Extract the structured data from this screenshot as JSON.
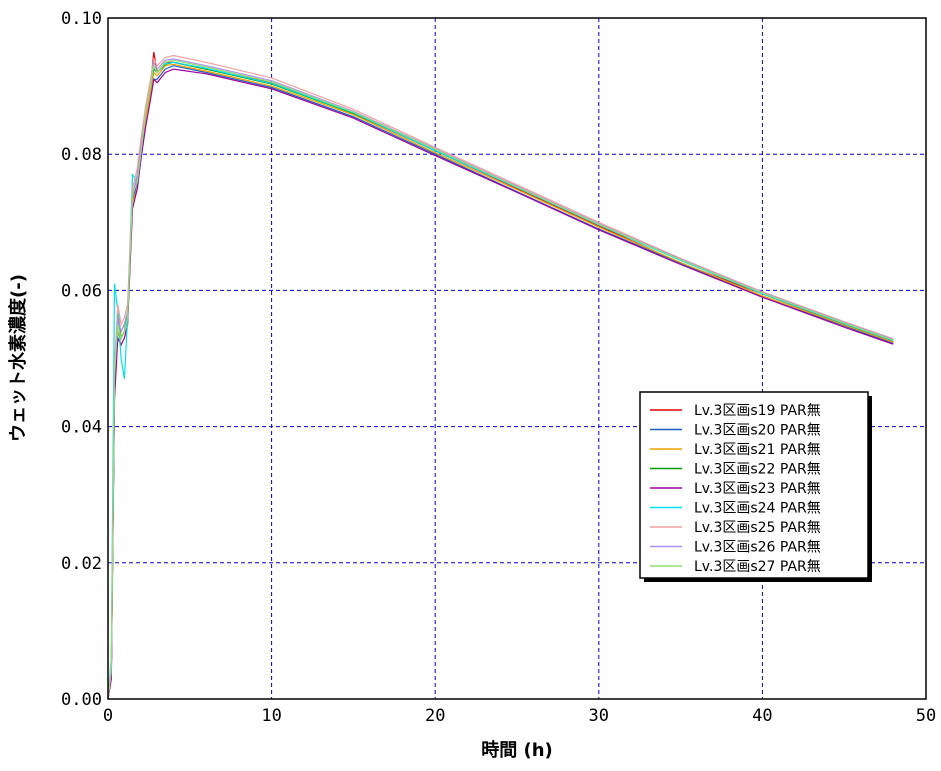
{
  "chart_data": {
    "type": "line",
    "title": "",
    "xlabel": "時間 (h)",
    "ylabel": "ウェット水素濃度(-)",
    "xlim": [
      0,
      50
    ],
    "ylim": [
      0.0,
      0.1
    ],
    "x_ticks": [
      0,
      10,
      20,
      30,
      40,
      50
    ],
    "y_ticks": [
      0.0,
      0.02,
      0.04,
      0.06,
      0.08,
      0.1
    ],
    "x_tick_labels": [
      "0",
      "10",
      "20",
      "30",
      "40",
      "50"
    ],
    "y_tick_labels": [
      "0.00",
      "0.02",
      "0.04",
      "0.06",
      "0.08",
      "0.10"
    ],
    "grid": true,
    "grid_color": "#0000cc",
    "legend_position": "center-right",
    "series": [
      {
        "name": "Lv.3区画s19 PAR無",
        "color": "#e00000",
        "x": [
          0,
          0.2,
          0.4,
          0.6,
          0.8,
          1.0,
          1.2,
          1.5,
          1.8,
          2.0,
          2.3,
          2.6,
          2.8,
          3.0,
          3.5,
          4,
          6,
          10,
          15,
          20,
          25,
          30,
          35,
          40,
          45,
          48
        ],
        "y": [
          0,
          0.003,
          0.045,
          0.056,
          0.053,
          0.054,
          0.056,
          0.074,
          0.076,
          0.08,
          0.086,
          0.09,
          0.095,
          0.092,
          0.0935,
          0.0935,
          0.0925,
          0.0905,
          0.086,
          0.0805,
          0.075,
          0.0695,
          0.064,
          0.0595,
          0.055,
          0.0525
        ]
      },
      {
        "name": "Lv.3区画s20 PAR無",
        "color": "#1f5fbf",
        "x": [
          0,
          0.2,
          0.4,
          0.6,
          0.8,
          1.0,
          1.2,
          1.5,
          1.8,
          2.0,
          2.3,
          2.6,
          2.8,
          3.0,
          3.5,
          4,
          6,
          10,
          15,
          20,
          25,
          30,
          35,
          40,
          45,
          48
        ],
        "y": [
          0,
          0.004,
          0.047,
          0.055,
          0.054,
          0.055,
          0.056,
          0.073,
          0.076,
          0.08,
          0.085,
          0.089,
          0.091,
          0.091,
          0.0925,
          0.093,
          0.092,
          0.0898,
          0.0855,
          0.08,
          0.0745,
          0.069,
          0.064,
          0.059,
          0.0548,
          0.0522
        ]
      },
      {
        "name": "Lv.3区画s21 PAR無",
        "color": "#f0a000",
        "x": [
          0,
          0.2,
          0.4,
          0.6,
          0.8,
          1.0,
          1.2,
          1.5,
          1.8,
          2.0,
          2.3,
          2.6,
          2.8,
          3.0,
          3.5,
          4,
          6,
          10,
          15,
          20,
          25,
          30,
          35,
          40,
          45,
          48
        ],
        "y": [
          0,
          0.005,
          0.048,
          0.054,
          0.052,
          0.053,
          0.055,
          0.073,
          0.075,
          0.079,
          0.085,
          0.089,
          0.092,
          0.0915,
          0.093,
          0.0932,
          0.0922,
          0.09,
          0.0858,
          0.0802,
          0.0748,
          0.0693,
          0.0641,
          0.0592,
          0.0549,
          0.0524
        ]
      },
      {
        "name": "Lv.3区画s22 PAR無",
        "color": "#00a000",
        "x": [
          0,
          0.2,
          0.4,
          0.6,
          0.8,
          1.0,
          1.2,
          1.5,
          1.8,
          2.0,
          2.3,
          2.6,
          2.8,
          3.0,
          3.5,
          4,
          6,
          10,
          15,
          20,
          25,
          30,
          35,
          40,
          45,
          48
        ],
        "y": [
          0,
          0.004,
          0.046,
          0.057,
          0.053,
          0.054,
          0.057,
          0.074,
          0.077,
          0.081,
          0.086,
          0.09,
          0.0925,
          0.092,
          0.0932,
          0.0935,
          0.0925,
          0.0903,
          0.086,
          0.0806,
          0.0752,
          0.0697,
          0.0645,
          0.0596,
          0.0552,
          0.0527
        ]
      },
      {
        "name": "Lv.3区画s23 PAR無",
        "color": "#a000a0",
        "x": [
          0,
          0.2,
          0.4,
          0.6,
          0.8,
          1.0,
          1.2,
          1.5,
          1.8,
          2.0,
          2.3,
          2.6,
          2.8,
          3.0,
          3.5,
          4,
          6,
          10,
          15,
          20,
          25,
          30,
          35,
          40,
          45,
          48
        ],
        "y": [
          0,
          0.003,
          0.044,
          0.053,
          0.052,
          0.053,
          0.055,
          0.072,
          0.075,
          0.079,
          0.084,
          0.088,
          0.091,
          0.0905,
          0.092,
          0.0925,
          0.0918,
          0.0896,
          0.0853,
          0.0798,
          0.0744,
          0.0689,
          0.0638,
          0.059,
          0.0546,
          0.0521
        ]
      },
      {
        "name": "Lv.3区画s24 PAR無",
        "color": "#00e0f0",
        "x": [
          0,
          0.2,
          0.4,
          0.6,
          0.8,
          1.0,
          1.2,
          1.5,
          1.8,
          2.0,
          2.3,
          2.6,
          2.8,
          3.0,
          3.5,
          4,
          6,
          10,
          15,
          20,
          25,
          30,
          35,
          40,
          45,
          48
        ],
        "y": [
          0,
          0.006,
          0.061,
          0.057,
          0.05,
          0.047,
          0.056,
          0.077,
          0.076,
          0.08,
          0.086,
          0.09,
          0.093,
          0.092,
          0.0933,
          0.0935,
          0.0926,
          0.0904,
          0.0861,
          0.0805,
          0.0751,
          0.0696,
          0.0644,
          0.0595,
          0.0551,
          0.0526
        ]
      },
      {
        "name": "Lv.3区画s25 PAR無",
        "color": "#f4a0a0",
        "x": [
          0,
          0.2,
          0.4,
          0.6,
          0.8,
          1.0,
          1.2,
          1.5,
          1.8,
          2.0,
          2.3,
          2.6,
          2.8,
          3.0,
          3.5,
          4,
          6,
          10,
          15,
          20,
          25,
          30,
          35,
          40,
          45,
          48
        ],
        "y": [
          0,
          0.005,
          0.049,
          0.058,
          0.055,
          0.056,
          0.058,
          0.075,
          0.078,
          0.082,
          0.087,
          0.091,
          0.094,
          0.093,
          0.0942,
          0.0945,
          0.0935,
          0.0912,
          0.0866,
          0.081,
          0.0755,
          0.07,
          0.0647,
          0.0598,
          0.0554,
          0.0529
        ]
      },
      {
        "name": "Lv.3区画s26 PAR無",
        "color": "#b090f0",
        "x": [
          0,
          0.2,
          0.4,
          0.6,
          0.8,
          1.0,
          1.2,
          1.5,
          1.8,
          2.0,
          2.3,
          2.6,
          2.8,
          3.0,
          3.5,
          4,
          6,
          10,
          15,
          20,
          25,
          30,
          35,
          40,
          45,
          48
        ],
        "y": [
          0,
          0.004,
          0.047,
          0.056,
          0.054,
          0.055,
          0.057,
          0.074,
          0.077,
          0.081,
          0.086,
          0.09,
          0.0935,
          0.0925,
          0.0938,
          0.094,
          0.093,
          0.0908,
          0.0863,
          0.0808,
          0.0753,
          0.0698,
          0.0646,
          0.0597,
          0.0553,
          0.0528
        ]
      },
      {
        "name": "Lv.3区画s27 PAR無",
        "color": "#90e070",
        "x": [
          0,
          0.2,
          0.4,
          0.6,
          0.8,
          1.0,
          1.2,
          1.5,
          1.8,
          2.0,
          2.3,
          2.6,
          2.8,
          3.0,
          3.5,
          4,
          6,
          10,
          15,
          20,
          25,
          30,
          35,
          40,
          45,
          48
        ],
        "y": [
          0,
          0.005,
          0.048,
          0.055,
          0.053,
          0.054,
          0.056,
          0.074,
          0.076,
          0.08,
          0.086,
          0.09,
          0.093,
          0.092,
          0.0935,
          0.0938,
          0.0928,
          0.0906,
          0.0862,
          0.0807,
          0.0752,
          0.0697,
          0.0645,
          0.0596,
          0.0552,
          0.0527
        ]
      }
    ]
  }
}
